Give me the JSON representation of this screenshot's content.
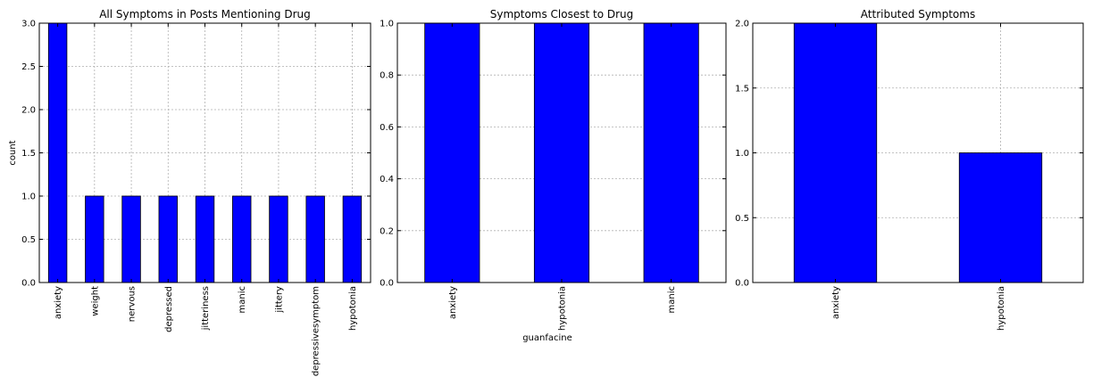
{
  "chart_data": [
    {
      "type": "bar",
      "title": "All Symptoms in Posts Mentioning Drug",
      "xlabel": "",
      "ylabel": "count",
      "categories": [
        "anxiety",
        "weight",
        "nervous",
        "depressed",
        "jitteriness",
        "manic",
        "jittery",
        "depressivesymptom",
        "hypotonia"
      ],
      "values": [
        3,
        1,
        1,
        1,
        1,
        1,
        1,
        1,
        1
      ],
      "ylim": [
        0,
        3
      ],
      "yticks": [
        "0.0",
        "0.5",
        "1.0",
        "1.5",
        "2.0",
        "2.5",
        "3.0"
      ],
      "grid": true,
      "bar_color": "#0000ff"
    },
    {
      "type": "bar",
      "title": "Symptoms Closest to Drug",
      "xlabel": "guanfacine",
      "ylabel": "",
      "categories": [
        "anxiety",
        "hypotonia",
        "manic"
      ],
      "values": [
        1,
        1,
        1
      ],
      "ylim": [
        0,
        1
      ],
      "yticks": [
        "0.0",
        "0.2",
        "0.4",
        "0.6",
        "0.8",
        "1.0"
      ],
      "grid": true,
      "bar_color": "#0000ff"
    },
    {
      "type": "bar",
      "title": "Attributed Symptoms",
      "xlabel": "",
      "ylabel": "",
      "categories": [
        "anxiety",
        "hypotonia"
      ],
      "values": [
        2,
        1
      ],
      "ylim": [
        0,
        2
      ],
      "yticks": [
        "0.0",
        "0.5",
        "1.0",
        "1.5",
        "2.0"
      ],
      "grid": true,
      "bar_color": "#0000ff"
    }
  ]
}
